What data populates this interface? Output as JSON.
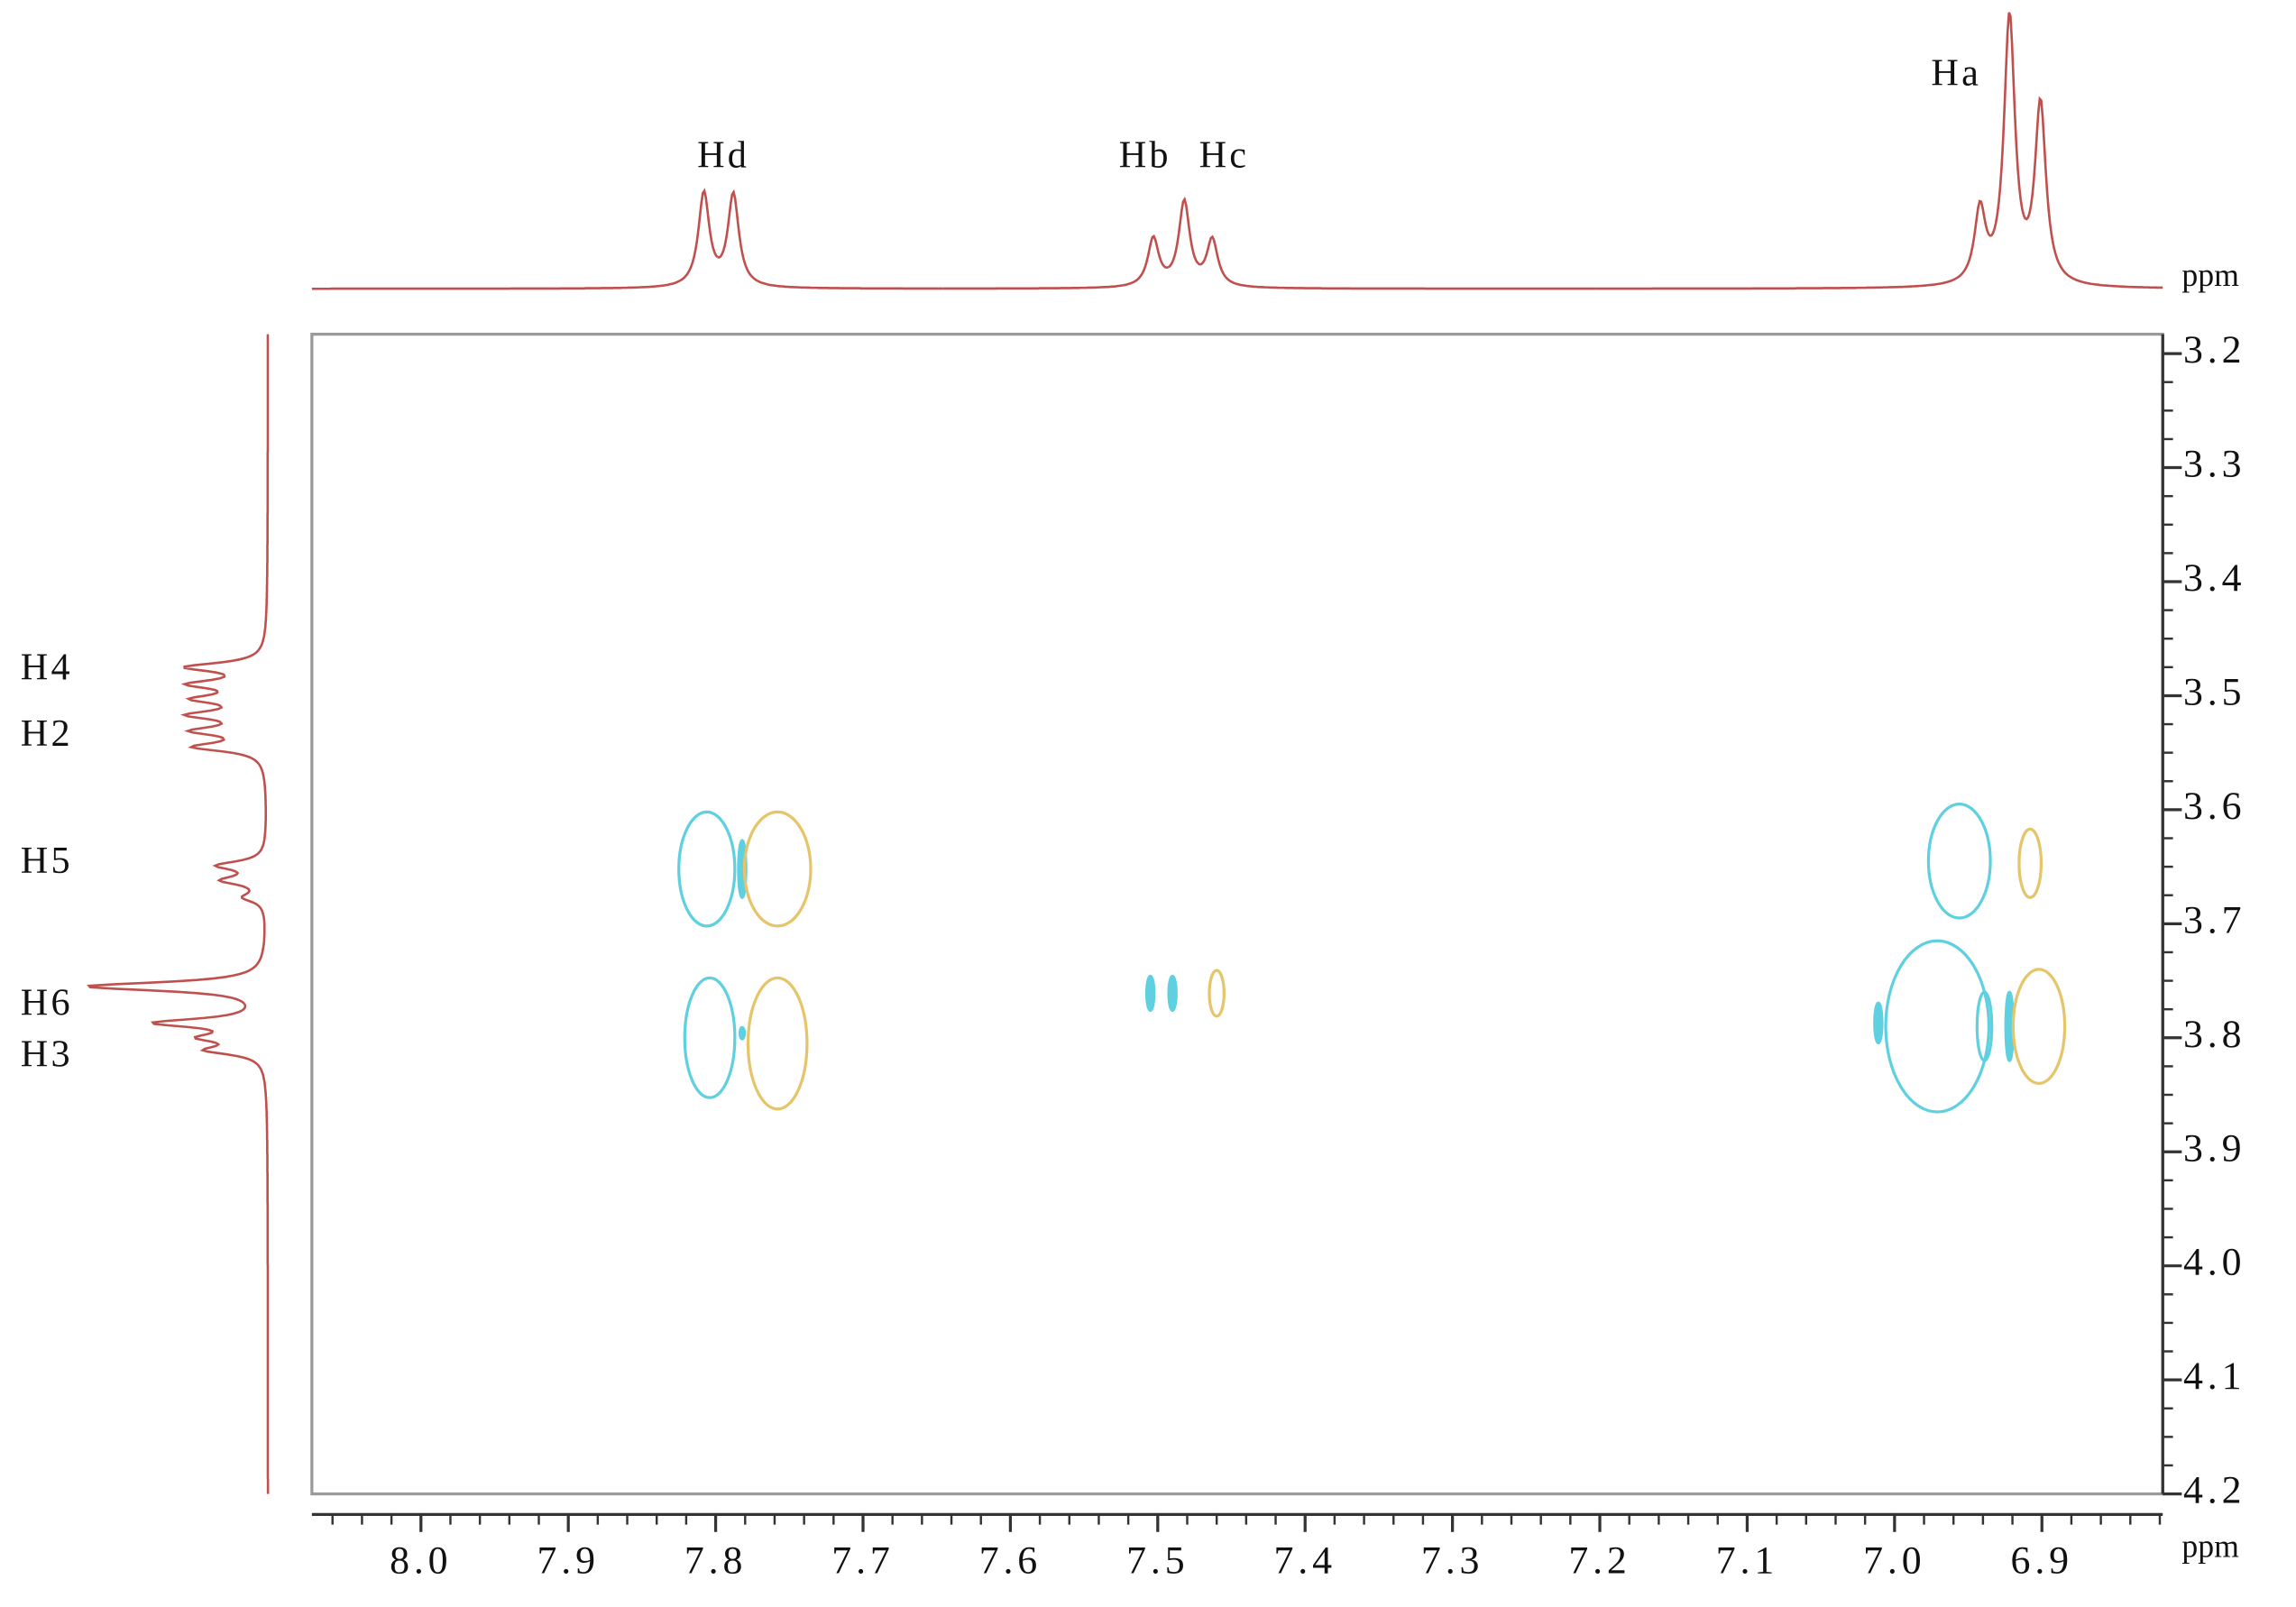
{
  "chart_data": {
    "type": "contour2d",
    "xlabel": "ppm",
    "xlim": [
      8.074,
      6.818
    ],
    "ylim": [
      3.183,
      4.2
    ],
    "xticks": [
      {
        "value": 8.0,
        "label": "8.0"
      },
      7.9,
      7.8,
      7.7,
      7.6,
      7.5,
      7.4,
      7.3,
      7.2,
      7.1,
      {
        "value": 7.0,
        "label": "7.0"
      },
      6.9
    ],
    "yticks": [
      3.2,
      3.3,
      3.4,
      3.5,
      3.6,
      3.7,
      3.8,
      3.9,
      {
        "value": 4.0,
        "label": "4.0"
      },
      4.1,
      4.2
    ],
    "xminorticks": [
      8.06,
      8.04,
      8.02,
      8.0,
      7.98,
      7.96,
      7.94,
      7.92,
      7.9,
      7.88,
      7.86,
      7.84,
      7.82,
      7.8,
      7.78,
      7.76,
      7.74,
      7.72,
      7.7,
      7.68,
      7.66,
      7.64,
      7.62,
      7.6,
      7.58,
      7.56,
      7.54,
      7.52,
      7.5,
      7.48,
      7.46,
      7.44,
      7.42,
      7.4,
      7.38,
      7.36,
      7.34,
      7.32,
      7.3,
      7.28,
      7.26,
      7.24,
      7.22,
      7.2,
      7.18,
      7.16,
      7.14,
      7.12,
      7.1,
      7.08,
      7.06,
      7.04,
      7.02,
      7.0,
      6.98,
      6.96,
      6.94,
      6.92,
      6.9,
      6.88,
      6.86,
      6.84,
      6.82
    ],
    "yminorticks": [
      3.2,
      3.225,
      3.25,
      3.275,
      3.3,
      3.325,
      3.35,
      3.375,
      3.4,
      3.425,
      3.45,
      3.475,
      3.5,
      3.525,
      3.55,
      3.575,
      3.6,
      3.625,
      3.65,
      3.675,
      3.7,
      3.725,
      3.75,
      3.775,
      3.8,
      3.825,
      3.85,
      3.875,
      3.9,
      3.925,
      3.95,
      3.975,
      4.0,
      4.025,
      4.05,
      4.075,
      4.1,
      4.125,
      4.15,
      4.175,
      4.2
    ],
    "trace_color": "#c0504d",
    "top_trace": {
      "label": "ppm",
      "peaks": [
        {
          "x": 7.808,
          "height": 64
        },
        {
          "x": 7.788,
          "height": 63
        },
        {
          "x": 7.503,
          "height": 33
        },
        {
          "x": 7.482,
          "height": 58
        },
        {
          "x": 7.463,
          "height": 32
        },
        {
          "x": 6.942,
          "height": 50
        },
        {
          "x": 6.922,
          "height": 182
        },
        {
          "x": 6.901,
          "height": 122
        }
      ],
      "labels": [
        "Hd",
        "Hb",
        "Hc",
        "Ha"
      ]
    },
    "left_trace": {
      "peaks": [
        {
          "y": 3.475,
          "height": 52
        },
        {
          "y": 3.49,
          "height": 46
        },
        {
          "y": 3.503,
          "height": 42
        },
        {
          "y": 3.517,
          "height": 46
        },
        {
          "y": 3.531,
          "height": 44
        },
        {
          "y": 3.545,
          "height": 46
        },
        {
          "y": 3.649,
          "height": 32
        },
        {
          "y": 3.662,
          "height": 28
        },
        {
          "y": 3.677,
          "height": 14
        },
        {
          "y": 3.755,
          "height": 122
        },
        {
          "y": 3.787,
          "height": 72
        },
        {
          "y": 3.8,
          "height": 36
        },
        {
          "y": 3.811,
          "height": 36
        }
      ],
      "labels": [
        "H4",
        "H2",
        "H5",
        "H6",
        "H3"
      ]
    },
    "peaks": [
      {
        "x": 7.806,
        "y": 3.652,
        "wx": 0.038,
        "wy": 0.1,
        "color": "#5fd0e0"
      },
      {
        "x": 7.782,
        "y": 3.652,
        "wx": 0.005,
        "wy": 0.05,
        "color": "#5fd0e0"
      },
      {
        "x": 7.758,
        "y": 3.652,
        "wx": 0.045,
        "wy": 0.1,
        "color": "#e6c46a"
      },
      {
        "x": 7.804,
        "y": 3.8,
        "wx": 0.034,
        "wy": 0.105,
        "color": "#5fd0e0"
      },
      {
        "x": 7.782,
        "y": 3.796,
        "wx": 0.003,
        "wy": 0.01,
        "color": "#5fd0e0"
      },
      {
        "x": 7.758,
        "y": 3.805,
        "wx": 0.04,
        "wy": 0.115,
        "color": "#e6c46a"
      },
      {
        "x": 7.505,
        "y": 3.761,
        "wx": 0.005,
        "wy": 0.03,
        "color": "#5fd0e0"
      },
      {
        "x": 7.49,
        "y": 3.761,
        "wx": 0.005,
        "wy": 0.03,
        "color": "#5fd0e0"
      },
      {
        "x": 7.46,
        "y": 3.761,
        "wx": 0.01,
        "wy": 0.04,
        "color": "#e6c46a"
      },
      {
        "x": 6.956,
        "y": 3.645,
        "wx": 0.042,
        "wy": 0.1,
        "color": "#5fd0e0"
      },
      {
        "x": 6.908,
        "y": 3.647,
        "wx": 0.015,
        "wy": 0.06,
        "color": "#e6c46a"
      },
      {
        "x": 7.011,
        "y": 3.787,
        "wx": 0.005,
        "wy": 0.035,
        "color": "#5fd0e0"
      },
      {
        "x": 6.971,
        "y": 3.79,
        "wx": 0.07,
        "wy": 0.15,
        "color": "#5fd0e0"
      },
      {
        "x": 6.939,
        "y": 3.79,
        "wx": 0.01,
        "wy": 0.06,
        "color": "#5fd0e0"
      },
      {
        "x": 6.922,
        "y": 3.79,
        "wx": 0.005,
        "wy": 0.06,
        "color": "#5fd0e0"
      },
      {
        "x": 6.902,
        "y": 3.79,
        "wx": 0.035,
        "wy": 0.1,
        "color": "#e6c46a"
      }
    ]
  }
}
